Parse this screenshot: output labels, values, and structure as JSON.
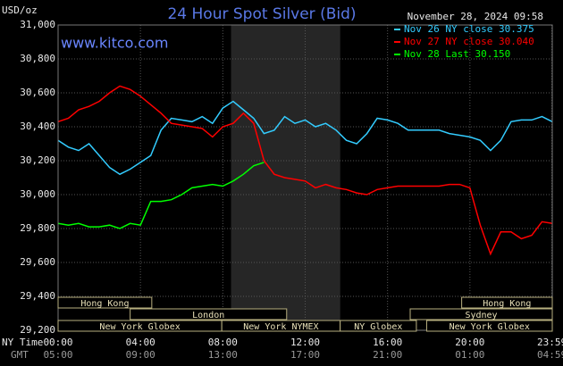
{
  "chart_data": {
    "type": "line",
    "title": "24 Hour Spot Silver (Bid)",
    "subtitle": "November 28, 2024 09:58",
    "source": "www.kitco.com",
    "ylabel": "USD/oz",
    "xlabel": "NY Time",
    "x2label": "GMT",
    "xlim": [
      0,
      24
    ],
    "ylim": [
      29200,
      31000
    ],
    "xticks": [
      {
        "value": 0,
        "label": "00:00"
      },
      {
        "value": 4,
        "label": "04:00"
      },
      {
        "value": 8,
        "label": "08:00"
      },
      {
        "value": 12,
        "label": "12:00"
      },
      {
        "value": 16,
        "label": "16:00"
      },
      {
        "value": 20,
        "label": "20:00"
      },
      {
        "value": 23.98,
        "label": "23:59"
      }
    ],
    "x2ticklabels": [
      "05:00",
      "09:00",
      "13:00",
      "17:00",
      "21:00",
      "01:00",
      "04:59"
    ],
    "yticks": [
      {
        "value": 29200,
        "label": "29,200"
      },
      {
        "value": 29400,
        "label": "29,400"
      },
      {
        "value": 29600,
        "label": "29,600"
      },
      {
        "value": 29800,
        "label": "29,800"
      },
      {
        "value": 30000,
        "label": "30,000"
      },
      {
        "value": 30200,
        "label": "30,200"
      },
      {
        "value": 30400,
        "label": "30,400"
      },
      {
        "value": 30600,
        "label": "30,600"
      },
      {
        "value": 30800,
        "label": "30,800"
      },
      {
        "value": 31000,
        "label": "31,000"
      }
    ],
    "grid": true,
    "highlight_range": [
      8.4,
      13.7
    ],
    "sessions": [
      {
        "name": "Hong Kong",
        "start": 0,
        "end": 4.55
      },
      {
        "name": "London",
        "start": 3.5,
        "end": 11.1
      },
      {
        "name": "New York Globex",
        "start": 0,
        "end": 7.95
      },
      {
        "name": "New York NYMEX",
        "start": 7.95,
        "end": 13.7
      },
      {
        "name": "NY Globex",
        "start": 13.7,
        "end": 17.4
      },
      {
        "name": "Hong Kong",
        "start": 19.6,
        "end": 24
      },
      {
        "name": "Sydney",
        "start": 17.1,
        "end": 24
      },
      {
        "name": "New York Globex",
        "start": 17.9,
        "end": 24
      }
    ],
    "x": [
      0,
      0.5,
      1,
      1.5,
      2,
      2.5,
      3,
      3.5,
      4,
      4.5,
      5,
      5.5,
      6,
      6.5,
      7,
      7.5,
      8,
      8.5,
      9,
      9.5,
      10,
      10.5,
      11,
      11.5,
      12,
      12.5,
      13,
      13.5,
      14,
      14.5,
      15,
      15.5,
      16,
      16.5,
      17,
      17.5,
      18,
      18.5,
      19,
      19.5,
      20,
      20.5,
      21,
      21.5,
      22,
      22.5,
      23,
      23.5,
      24
    ],
    "series": [
      {
        "name": "Nov 26 NY close 30.375",
        "color": "#33ccff",
        "values": [
          30320,
          30280,
          30260,
          30300,
          30230,
          30160,
          30120,
          30150,
          30190,
          30230,
          30380,
          30450,
          30440,
          30430,
          30460,
          30420,
          30510,
          30550,
          30500,
          30450,
          30360,
          30380,
          30460,
          30420,
          30440,
          30400,
          30420,
          30380,
          30320,
          30300,
          30360,
          30450,
          30440,
          30420,
          30380,
          30380,
          30380,
          30380,
          30360,
          30350,
          30340,
          30320,
          30260,
          30320,
          30430,
          30440,
          30440,
          30460,
          30430
        ]
      },
      {
        "name": "Nov 27 NY close 30.040",
        "color": "#ff0000",
        "values": [
          30430,
          30450,
          30500,
          30520,
          30550,
          30600,
          30640,
          30620,
          30580,
          30530,
          30480,
          30420,
          30410,
          30400,
          30390,
          30340,
          30400,
          30420,
          30480,
          30420,
          30200,
          30120,
          30100,
          30090,
          30080,
          30040,
          30060,
          30040,
          30030,
          30010,
          30000,
          30030,
          30040,
          30050,
          30050,
          30050,
          30050,
          30050,
          30060,
          30060,
          30040,
          29820,
          29650,
          29780,
          29780,
          29740,
          29760,
          29840,
          29830
        ]
      },
      {
        "name": "Nov 28 Last 30.150",
        "color": "#00ff00",
        "values": [
          29830,
          29820,
          29830,
          29810,
          29810,
          29820,
          29800,
          29830,
          29820,
          29960,
          29960,
          29970,
          30000,
          30040,
          30050,
          30060,
          30050,
          30080,
          30120,
          30170,
          30190,
          null,
          null,
          null,
          null,
          null,
          null,
          null,
          null,
          null,
          null,
          null,
          null,
          null,
          null,
          null,
          null,
          null,
          null,
          null,
          null,
          null,
          null,
          null,
          null,
          null,
          null,
          null,
          null
        ]
      }
    ]
  }
}
